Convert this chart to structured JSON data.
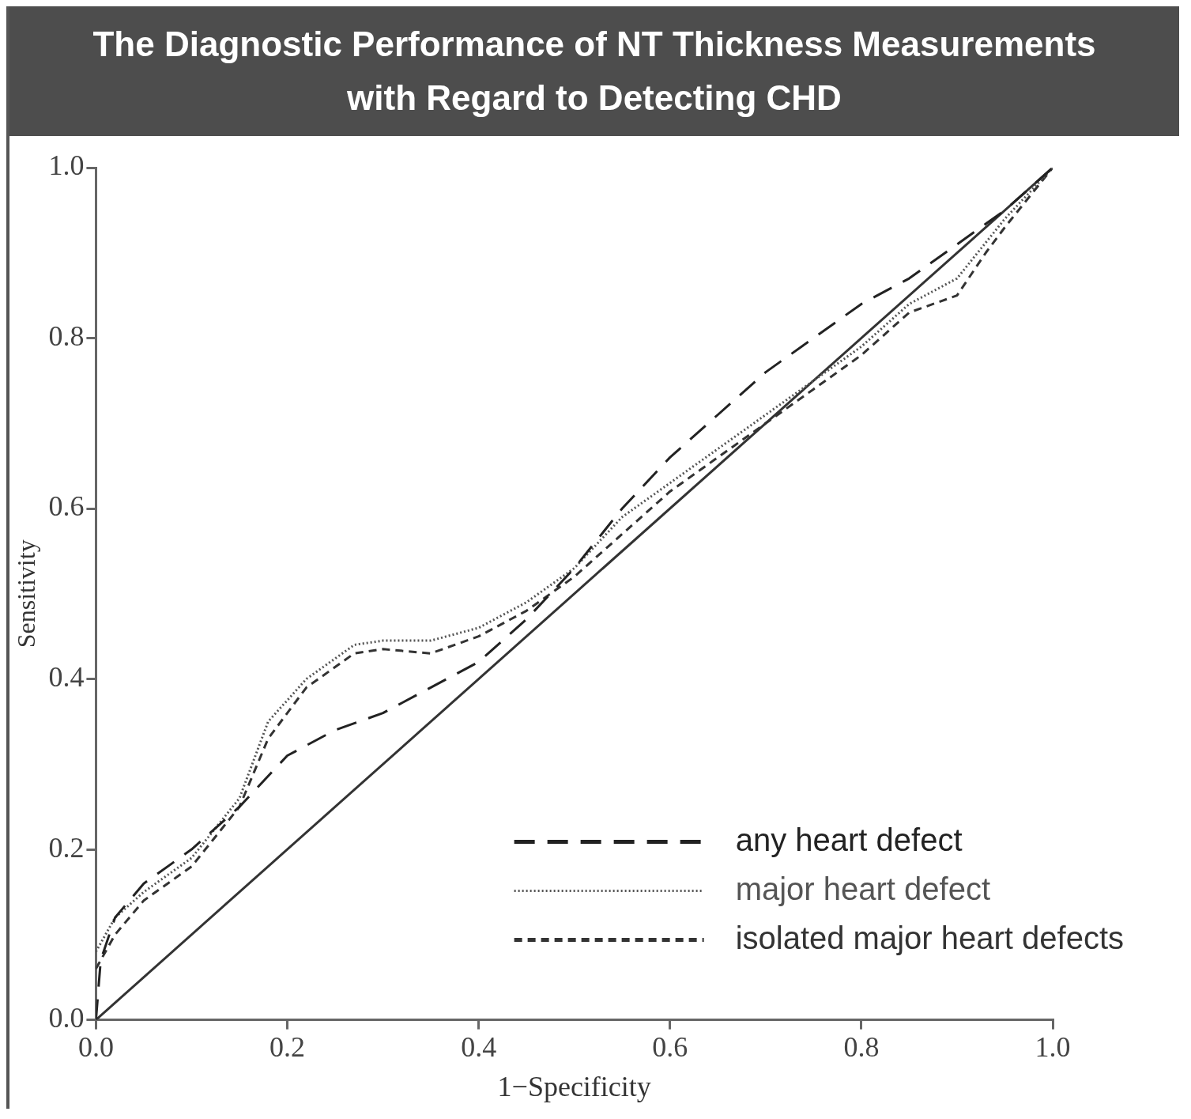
{
  "chart_data": {
    "type": "line",
    "title": "The Diagnostic Performance of NT Thickness Measurements with Regard to Detecting CHD",
    "xlabel": "1−Specificity",
    "ylabel": "Sensitivity",
    "xlim": [
      0,
      1
    ],
    "ylim": [
      0,
      1
    ],
    "xticks": [
      {
        "value": 0,
        "label": "0.0"
      },
      {
        "value": 0.2,
        "label": "0.2"
      },
      {
        "value": 0.4,
        "label": "0.4"
      },
      {
        "value": 0.6,
        "label": "0.6"
      },
      {
        "value": 0.8,
        "label": "0.8"
      },
      {
        "value": 1,
        "label": "1.0"
      }
    ],
    "yticks": [
      {
        "value": 0,
        "label": "0.0"
      },
      {
        "value": 0.2,
        "label": "0.2"
      },
      {
        "value": 0.4,
        "label": "0.4"
      },
      {
        "value": 0.6,
        "label": "0.6"
      },
      {
        "value": 0.8,
        "label": "0.8"
      },
      {
        "value": 1,
        "label": "1.0"
      }
    ],
    "grid": false,
    "legend": "bottom right",
    "marker": "none",
    "series": [
      {
        "name": "any heart defect",
        "color": "#222222",
        "line_style": "dashed",
        "x": [
          0,
          0.005,
          0.02,
          0.05,
          0.1,
          0.15,
          0.2,
          0.25,
          0.3,
          0.35,
          0.4,
          0.45,
          0.5,
          0.55,
          0.6,
          0.65,
          0.7,
          0.75,
          0.8,
          0.85,
          0.9,
          0.95,
          1
        ],
        "values": [
          0,
          0.07,
          0.12,
          0.16,
          0.2,
          0.25,
          0.31,
          0.34,
          0.36,
          0.39,
          0.42,
          0.47,
          0.53,
          0.6,
          0.66,
          0.71,
          0.76,
          0.8,
          0.84,
          0.87,
          0.91,
          0.95,
          1
        ]
      },
      {
        "name": "major heart defect",
        "color": "#555555",
        "line_style": "dotted",
        "x": [
          0,
          0.02,
          0.05,
          0.1,
          0.15,
          0.18,
          0.22,
          0.27,
          0.3,
          0.35,
          0.4,
          0.45,
          0.5,
          0.55,
          0.6,
          0.65,
          0.7,
          0.75,
          0.8,
          0.85,
          0.9,
          0.95,
          1
        ],
        "values": [
          0.08,
          0.12,
          0.15,
          0.19,
          0.26,
          0.35,
          0.4,
          0.44,
          0.445,
          0.445,
          0.46,
          0.49,
          0.53,
          0.59,
          0.63,
          0.67,
          0.71,
          0.75,
          0.79,
          0.84,
          0.87,
          0.94,
          1
        ]
      },
      {
        "name": "isolated major heart defects",
        "color": "#333333",
        "line_style": "dashed",
        "x": [
          0,
          0.02,
          0.05,
          0.1,
          0.15,
          0.18,
          0.22,
          0.27,
          0.3,
          0.35,
          0.4,
          0.45,
          0.5,
          0.55,
          0.6,
          0.65,
          0.7,
          0.75,
          0.8,
          0.85,
          0.9,
          0.93,
          0.95,
          1
        ],
        "values": [
          0.06,
          0.1,
          0.14,
          0.18,
          0.25,
          0.33,
          0.39,
          0.43,
          0.435,
          0.43,
          0.45,
          0.48,
          0.52,
          0.57,
          0.62,
          0.66,
          0.7,
          0.74,
          0.78,
          0.83,
          0.85,
          0.9,
          0.93,
          1
        ]
      },
      {
        "color": "#333333",
        "line_style": "solid",
        "x": [
          0,
          1
        ],
        "values": [
          0,
          1
        ]
      }
    ]
  }
}
